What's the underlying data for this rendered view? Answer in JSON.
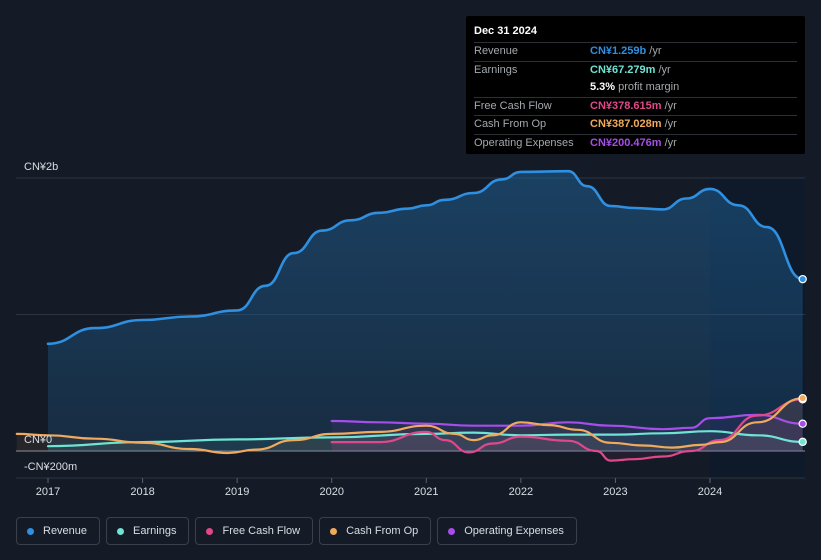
{
  "tooltip": {
    "date": "Dec 31 2024",
    "rows": [
      {
        "label": "Revenue",
        "value": "CN¥1.259b",
        "unit": "/yr",
        "color": "#2f8fe0"
      },
      {
        "label": "Earnings",
        "value": "CN¥67.279m",
        "unit": "/yr",
        "color": "#6fe3d4"
      },
      {
        "label": "",
        "value": "5.3%",
        "unit": "profit margin",
        "color": "#ffffff"
      },
      {
        "label": "Free Cash Flow",
        "value": "CN¥378.615m",
        "unit": "/yr",
        "color": "#e0488c"
      },
      {
        "label": "Cash From Op",
        "value": "CN¥387.028m",
        "unit": "/yr",
        "color": "#efaa5e"
      },
      {
        "label": "Operating Expenses",
        "value": "CN¥200.476m",
        "unit": "/yr",
        "color": "#a64ee8"
      }
    ]
  },
  "chart_data": {
    "type": "line",
    "title": "",
    "xlabel": "",
    "ylabel": "",
    "y_tick_labels": [
      "CN¥2b",
      "CN¥0",
      "-CN¥200m"
    ],
    "x_tick_labels": [
      "2017",
      "2018",
      "2019",
      "2020",
      "2021",
      "2022",
      "2023",
      "2024"
    ],
    "x_ticks": [
      2017,
      2018,
      2019,
      2020,
      2021,
      2022,
      2023,
      2024
    ],
    "xlim": [
      2016.67,
      2024.98
    ],
    "ylim": [
      -200,
      2000
    ],
    "grid_values": [
      2000,
      1000,
      0
    ],
    "highlight_from": 2024.0,
    "series": [
      {
        "name": "Revenue",
        "color": "#2f8fe0",
        "fill": true,
        "points": [
          [
            2017.0,
            785
          ],
          [
            2017.5,
            900
          ],
          [
            2018.0,
            960
          ],
          [
            2018.5,
            985
          ],
          [
            2019.0,
            1030
          ],
          [
            2019.3,
            1210
          ],
          [
            2019.6,
            1450
          ],
          [
            2019.9,
            1615
          ],
          [
            2020.2,
            1690
          ],
          [
            2020.5,
            1745
          ],
          [
            2020.8,
            1775
          ],
          [
            2021.0,
            1800
          ],
          [
            2021.2,
            1840
          ],
          [
            2021.5,
            1890
          ],
          [
            2021.8,
            1990
          ],
          [
            2022.0,
            2045
          ],
          [
            2022.5,
            2050
          ],
          [
            2022.7,
            1940
          ],
          [
            2022.95,
            1795
          ],
          [
            2023.2,
            1780
          ],
          [
            2023.5,
            1770
          ],
          [
            2023.75,
            1850
          ],
          [
            2024.0,
            1920
          ],
          [
            2024.3,
            1800
          ],
          [
            2024.6,
            1640
          ],
          [
            2024.98,
            1259
          ]
        ]
      },
      {
        "name": "Earnings",
        "color": "#6fe3d4",
        "fill": false,
        "points": [
          [
            2017.0,
            35
          ],
          [
            2018.0,
            65
          ],
          [
            2019.0,
            85
          ],
          [
            2020.0,
            100
          ],
          [
            2021.0,
            125
          ],
          [
            2021.5,
            135
          ],
          [
            2022.0,
            115
          ],
          [
            2022.5,
            120
          ],
          [
            2023.0,
            120
          ],
          [
            2023.5,
            130
          ],
          [
            2024.0,
            145
          ],
          [
            2024.5,
            115
          ],
          [
            2024.98,
            67
          ]
        ]
      },
      {
        "name": "Free Cash Flow",
        "color": "#e0488c",
        "fill": false,
        "points": [
          [
            2020.0,
            65
          ],
          [
            2020.5,
            65
          ],
          [
            2021.0,
            140
          ],
          [
            2021.2,
            80
          ],
          [
            2021.45,
            -10
          ],
          [
            2021.7,
            55
          ],
          [
            2022.0,
            105
          ],
          [
            2022.5,
            75
          ],
          [
            2022.8,
            0
          ],
          [
            2022.95,
            -70
          ],
          [
            2023.2,
            -60
          ],
          [
            2023.5,
            -40
          ],
          [
            2023.8,
            0
          ],
          [
            2024.1,
            80
          ],
          [
            2024.5,
            260
          ],
          [
            2024.98,
            379
          ]
        ]
      },
      {
        "name": "Cash From Op",
        "color": "#efaa5e",
        "fill": false,
        "points": [
          [
            2016.67,
            125
          ],
          [
            2017.0,
            115
          ],
          [
            2017.5,
            90
          ],
          [
            2018.0,
            60
          ],
          [
            2018.5,
            15
          ],
          [
            2018.9,
            -15
          ],
          [
            2019.2,
            10
          ],
          [
            2019.6,
            80
          ],
          [
            2020.0,
            125
          ],
          [
            2020.5,
            140
          ],
          [
            2021.0,
            185
          ],
          [
            2021.3,
            125
          ],
          [
            2021.5,
            80
          ],
          [
            2021.7,
            115
          ],
          [
            2022.0,
            210
          ],
          [
            2022.3,
            190
          ],
          [
            2022.6,
            155
          ],
          [
            2022.95,
            60
          ],
          [
            2023.3,
            40
          ],
          [
            2023.6,
            25
          ],
          [
            2023.9,
            45
          ],
          [
            2024.1,
            65
          ],
          [
            2024.5,
            210
          ],
          [
            2024.98,
            387
          ]
        ]
      },
      {
        "name": "Operating Expenses",
        "color": "#a64ee8",
        "fill": false,
        "points": [
          [
            2020.0,
            220
          ],
          [
            2020.5,
            210
          ],
          [
            2021.0,
            200
          ],
          [
            2021.5,
            185
          ],
          [
            2022.0,
            185
          ],
          [
            2022.5,
            210
          ],
          [
            2022.95,
            185
          ],
          [
            2023.5,
            160
          ],
          [
            2023.8,
            170
          ],
          [
            2024.0,
            240
          ],
          [
            2024.5,
            265
          ],
          [
            2024.98,
            200
          ]
        ]
      }
    ]
  },
  "legend": {
    "items": [
      {
        "label": "Revenue",
        "color": "#2f8fe0"
      },
      {
        "label": "Earnings",
        "color": "#6fe3d4"
      },
      {
        "label": "Free Cash Flow",
        "color": "#e0488c"
      },
      {
        "label": "Cash From Op",
        "color": "#efaa5e"
      },
      {
        "label": "Operating Expenses",
        "color": "#a64ee8"
      }
    ]
  }
}
